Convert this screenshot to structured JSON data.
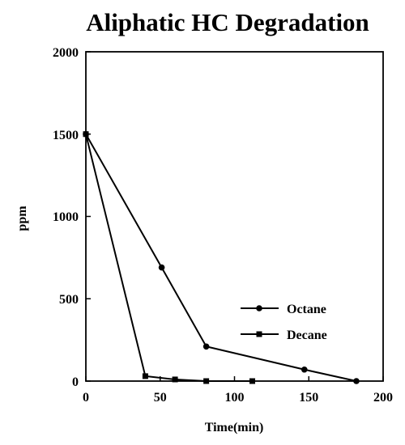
{
  "chart_data": {
    "type": "line",
    "title": "Aliphatic HC Degradation",
    "xlabel": "Time(min)",
    "ylabel": "ppm",
    "xlim": [
      0,
      200
    ],
    "ylim": [
      0,
      2000
    ],
    "xticks": [
      0,
      50,
      100,
      150,
      200
    ],
    "yticks": [
      0,
      500,
      1000,
      1500,
      2000
    ],
    "xtick_labels": [
      "0",
      "50",
      "100",
      "150",
      "200"
    ],
    "ytick_labels": [
      "0",
      "500",
      "1000",
      "1500",
      "2000"
    ],
    "grid": false,
    "legend_position": "lower-right",
    "series": [
      {
        "name": "Octane",
        "marker": "circle",
        "color": "#000000",
        "x": [
          0,
          51,
          81,
          147,
          182
        ],
        "y": [
          1500,
          690,
          210,
          70,
          0
        ]
      },
      {
        "name": "Decane",
        "marker": "square",
        "color": "#000000",
        "x": [
          0,
          40,
          60,
          81,
          112
        ],
        "y": [
          1500,
          30,
          10,
          0,
          0
        ]
      }
    ]
  }
}
